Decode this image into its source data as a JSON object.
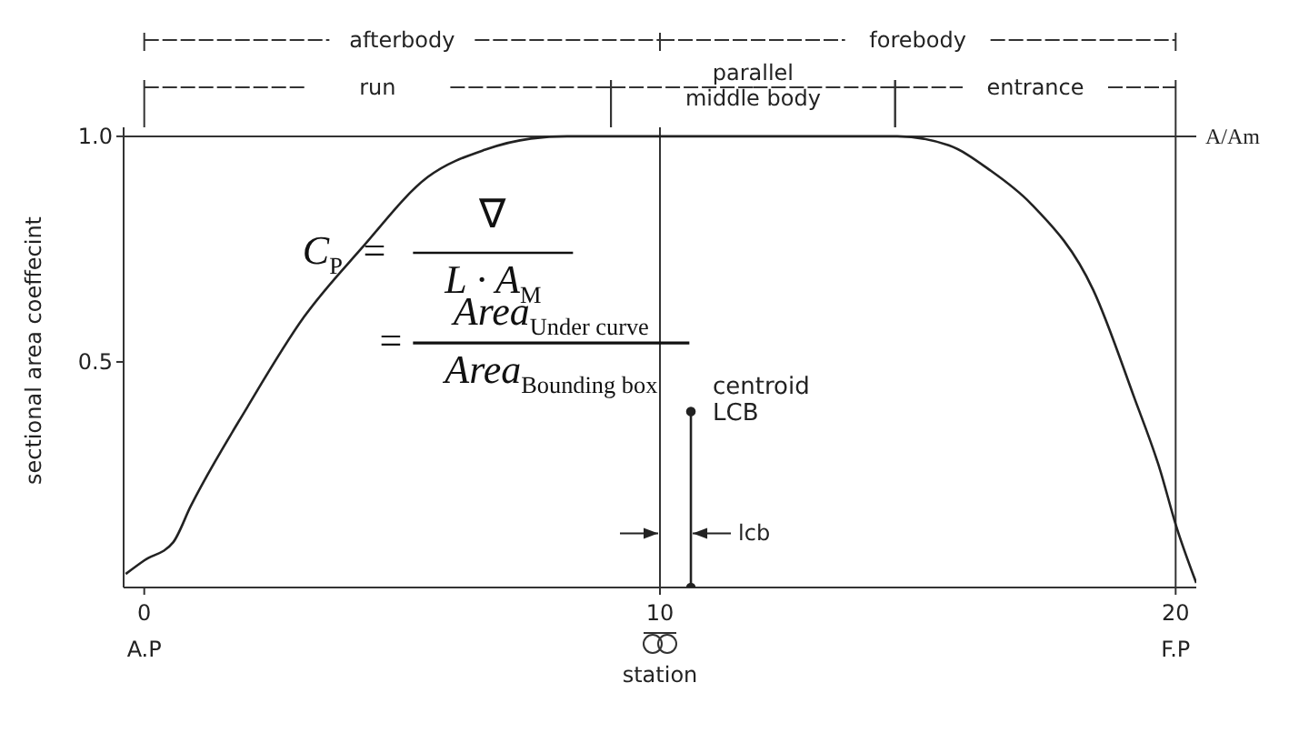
{
  "chart_data": {
    "type": "line",
    "xlabel": "station",
    "ylabel": "sectional area coeffecint",
    "xlim": [
      -0.4,
      20.4
    ],
    "ylim": [
      0,
      1.02
    ],
    "xticks": [
      {
        "value": 0,
        "label": "0\nA.P"
      },
      10,
      {
        "value": 20,
        "label": "20\nF.P"
      }
    ],
    "yticks": [
      0.5,
      {
        "value": 1,
        "label": "1.0"
      }
    ],
    "marker": "none",
    "line_style": "solid",
    "series": [
      {
        "color": "#222222",
        "x": [
          -0.36,
          0,
          0.56,
          0.9,
          2.0,
          3.1,
          4.2,
          5.5,
          6.6,
          7.5,
          8.2,
          14.6,
          15.6,
          16.4,
          17.2,
          18.4,
          19.2,
          19.7,
          20.0,
          20.4
        ],
        "values": [
          0.03,
          0.06,
          0.1,
          0.18,
          0.4,
          0.6,
          0.75,
          0.91,
          0.97,
          0.995,
          1.0,
          1.0,
          0.98,
          0.925,
          0.85,
          0.66,
          0.42,
          0.26,
          0.14,
          0.01
        ]
      },
      {
        "color": "#222222",
        "marker": "circle",
        "x": [
          10.6,
          10.6
        ],
        "values": [
          0,
          0.39
        ]
      }
    ],
    "ref_lines": [
      {
        "axis": "y",
        "value": 1,
        "label": "A/Am"
      },
      {
        "axis": "x",
        "value": 10,
        "label": null
      },
      {
        "axis": "x",
        "value": 20,
        "label": null
      }
    ],
    "annotations": [
      "C$_{P}$ =",
      "∇",
      "L · A$_{M}$",
      "=",
      "Area$_{Under curve}$",
      "Area$_{Bounding box}$",
      {
        "text": "centroid\nLCB",
        "x": 10.6,
        "y": 0.39
      },
      {
        "text": "lcb",
        "x": 10.6,
        "y": 0.12
      },
      "afterbody",
      "forebody",
      "run",
      "parallel\nmiddle body",
      "entrance"
    ]
  }
}
